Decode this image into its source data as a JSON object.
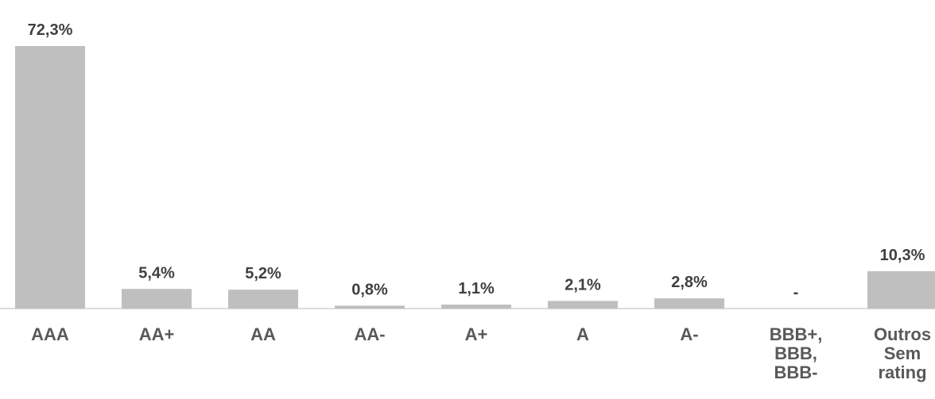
{
  "chart_data": {
    "type": "bar",
    "categories": [
      "AAA",
      "AA+",
      "AA",
      "AA-",
      "A+",
      "A",
      "A-",
      "BBB+, BBB, BBB-",
      "Outros Sem rating"
    ],
    "values": [
      72.3,
      5.4,
      5.2,
      0.8,
      1.1,
      2.1,
      2.8,
      0,
      10.3
    ],
    "value_labels": [
      "72,3%",
      "5,4%",
      "5,2%",
      "0,8%",
      "1,1%",
      "2,1%",
      "2,8%",
      "-",
      "10,3%"
    ],
    "color": "#bfbfbf"
  }
}
